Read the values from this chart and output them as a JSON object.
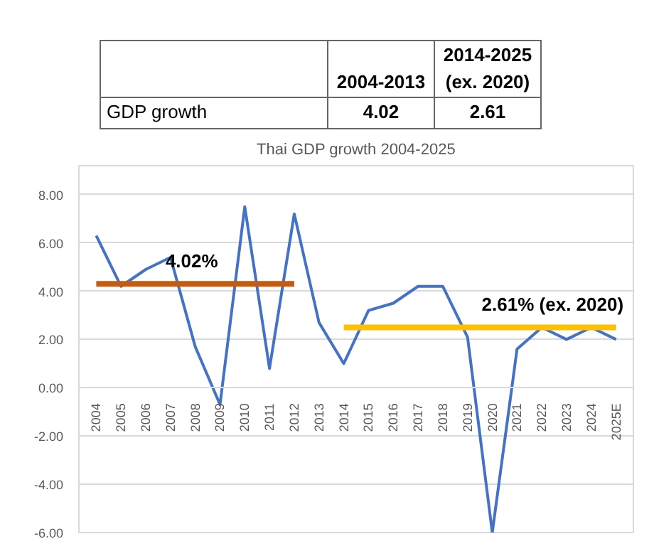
{
  "chart_data": [
    {
      "type": "other",
      "annotations": [
        "2004-2013",
        "2014-2025 (ex. 2020)",
        "GDP growth",
        "4.02",
        "2.61"
      ]
    },
    {
      "type": "line",
      "title": "Thai GDP growth 2004-2025",
      "categories": [
        "2004",
        "2005",
        "2006",
        "2007",
        "2008",
        "2009",
        "2010",
        "2011",
        "2012",
        "2013",
        "2014",
        "2015",
        "2016",
        "2017",
        "2018",
        "2019",
        "2020",
        "2021",
        "2022",
        "2023",
        "2024",
        "2025E"
      ],
      "series": [
        {
          "color": "#4472c4",
          "values": [
            6.3,
            4.2,
            4.9,
            5.4,
            1.7,
            -0.7,
            7.5,
            0.8,
            7.2,
            2.7,
            1.0,
            3.2,
            3.5,
            4.2,
            4.2,
            2.1,
            -6.0,
            1.6,
            2.5,
            2.0,
            2.5,
            2.0
          ]
        },
        {
          "color": "#c55a11",
          "values": [
            4.3,
            4.3,
            4.3,
            4.3,
            4.3,
            4.3,
            4.3,
            4.3,
            4.3,
            null,
            null,
            null,
            null,
            null,
            null,
            null,
            null,
            null,
            null,
            null,
            null,
            null
          ]
        },
        {
          "color": "#ffc000",
          "values": [
            null,
            null,
            null,
            null,
            null,
            null,
            null,
            null,
            null,
            null,
            2.5,
            2.5,
            2.5,
            2.5,
            2.5,
            2.5,
            2.5,
            2.5,
            2.5,
            2.5,
            2.5,
            2.5
          ]
        }
      ],
      "ylim": [
        -6,
        8
      ],
      "yticks": [
        {
          "value": -6,
          "label": "-6.00"
        },
        {
          "value": -4,
          "label": "-4.00"
        },
        {
          "value": -2,
          "label": "-2.00"
        },
        {
          "value": 0,
          "label": "0.00"
        },
        {
          "value": 2,
          "label": "2.00"
        },
        {
          "value": 4,
          "label": "4.00"
        },
        {
          "value": 6,
          "label": "6.00"
        },
        {
          "value": 8,
          "label": "8.00"
        }
      ],
      "grid": "y",
      "annotations": [
        "4.02%",
        "2.61% (ex. 2020)"
      ]
    }
  ]
}
